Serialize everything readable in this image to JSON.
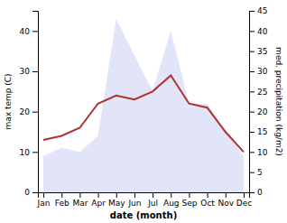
{
  "chart_data": {
    "type": "line",
    "categories": [
      "Jan",
      "Feb",
      "Mar",
      "Apr",
      "May",
      "Jun",
      "Jul",
      "Aug",
      "Sep",
      "Oct",
      "Nov",
      "Dec"
    ],
    "series": [
      {
        "type": "area",
        "axis": "y2",
        "color": "#c8d0f0",
        "values": [
          9,
          11,
          10,
          14,
          43,
          34,
          25,
          40,
          22,
          22,
          15,
          9
        ]
      },
      {
        "type": "line",
        "color": "#b03030",
        "values": [
          13,
          14,
          16,
          22,
          24,
          23,
          25,
          29,
          22,
          21,
          15,
          10
        ]
      }
    ],
    "xlabel": "date (month)",
    "ylabel": "max temp (C)",
    "y2label": "med. precipitation (kg/m2)",
    "ylim": [
      0,
      45
    ],
    "yticks": [
      0,
      10,
      20,
      30,
      40
    ],
    "y2lim": [
      0,
      45
    ],
    "y2ticks": [
      0,
      5,
      10,
      15,
      20,
      25,
      30,
      35,
      40,
      45
    ],
    "grid": false
  }
}
